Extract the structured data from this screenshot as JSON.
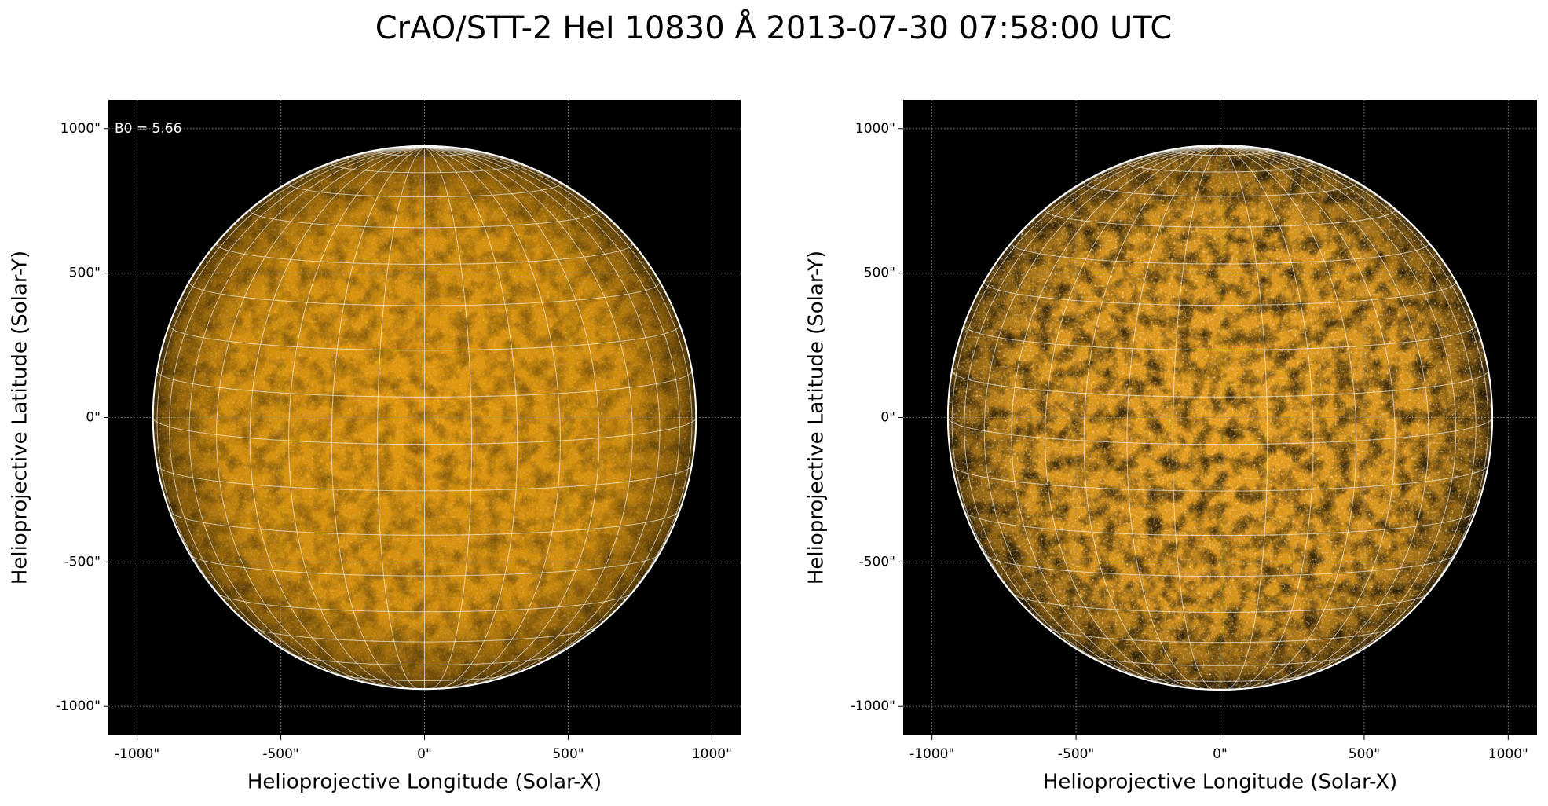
{
  "title": "CrAO/STT-2 HeI 10830 Å 2013-07-30 07:58:00 UTC",
  "chart_data": [
    {
      "type": "solar-disk",
      "xlabel": "Helioprojective Longitude (Solar-X)",
      "ylabel": "Helioprojective Latitude (Solar-Y)",
      "annotation": "B0 = 5.66",
      "b0": 5.66,
      "disk_radius": 945,
      "graticule_step": 10,
      "xlim": [
        -1100,
        1100
      ],
      "ylim": [
        -1100,
        1100
      ],
      "xticks": [
        {
          "value": -1000,
          "label": "-1000\""
        },
        {
          "value": -500,
          "label": "-500\""
        },
        {
          "value": 0,
          "label": "0\""
        },
        {
          "value": 500,
          "label": "500\""
        },
        {
          "value": 1000,
          "label": "1000\""
        }
      ],
      "yticks": [
        {
          "value": -1000,
          "label": "-1000\""
        },
        {
          "value": -500,
          "label": "-500\""
        },
        {
          "value": 0,
          "label": "0\""
        },
        {
          "value": 500,
          "label": "500\""
        },
        {
          "value": 1000,
          "label": "1000\""
        }
      ],
      "grid": true,
      "color": "#e39a10",
      "texture": 0.35
    },
    {
      "type": "solar-disk",
      "xlabel": "Helioprojective Longitude (Solar-X)",
      "ylabel": "Helioprojective Latitude (Solar-Y)",
      "b0": 5.66,
      "disk_radius": 945,
      "graticule_step": 10,
      "xlim": [
        -1100,
        1100
      ],
      "ylim": [
        -1100,
        1100
      ],
      "xticks": [
        {
          "value": -1000,
          "label": "-1000\""
        },
        {
          "value": -500,
          "label": "-500\""
        },
        {
          "value": 0,
          "label": "0\""
        },
        {
          "value": 500,
          "label": "500\""
        },
        {
          "value": 1000,
          "label": "1000\""
        }
      ],
      "yticks": [
        {
          "value": -1000,
          "label": "-1000\""
        },
        {
          "value": -500,
          "label": "-500\""
        },
        {
          "value": 0,
          "label": "0\""
        },
        {
          "value": 500,
          "label": "500\""
        },
        {
          "value": 1000,
          "label": "1000\""
        }
      ],
      "grid": true,
      "color": "#e8a020",
      "texture": 0.7
    }
  ]
}
